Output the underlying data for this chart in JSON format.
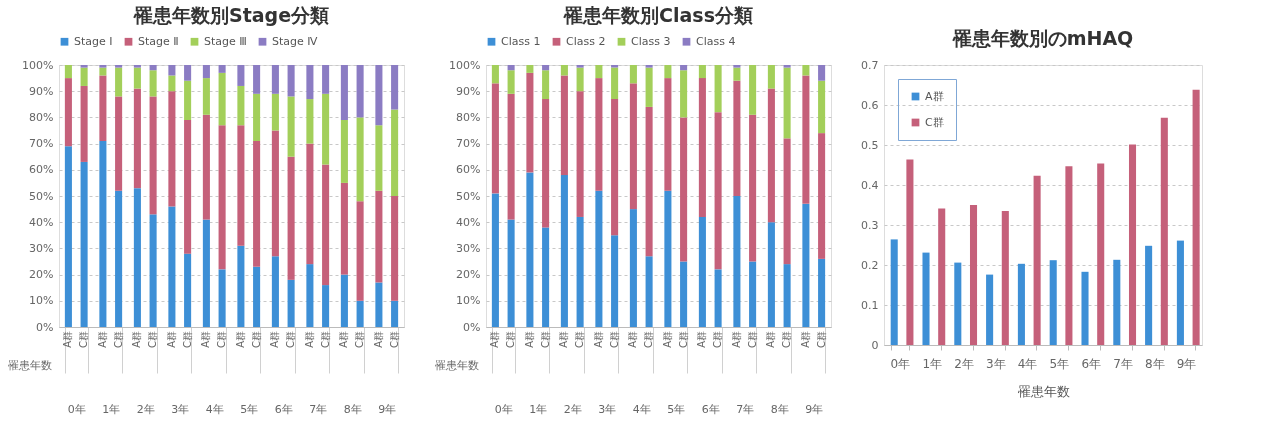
{
  "chart_data": [
    {
      "type": "bar",
      "stacked": true,
      "title": "罹患年数別Stage分類",
      "xlabel": "罹患年数",
      "legend": "top",
      "grid": "y",
      "categories": [
        "A群",
        "C群",
        "A群",
        "C群",
        "A群",
        "C群",
        "A群",
        "C群",
        "A群",
        "C群",
        "A群",
        "C群",
        "A群",
        "C群",
        "A群",
        "C群",
        "A群",
        "C群",
        "A群",
        "C群"
      ],
      "annotations": [
        "0年",
        "1年",
        "2年",
        "3年",
        "4年",
        "5年",
        "6年",
        "7年",
        "8年",
        "9年"
      ],
      "ylim": [
        0,
        100
      ],
      "yticks": [
        {
          "value": 0,
          "label": "0%"
        },
        {
          "value": 10,
          "label": "10%"
        },
        {
          "value": 20,
          "label": "20%"
        },
        {
          "value": 30,
          "label": "30%"
        },
        {
          "value": 40,
          "label": "40%"
        },
        {
          "value": 50,
          "label": "50%"
        },
        {
          "value": 60,
          "label": "60%"
        },
        {
          "value": 70,
          "label": "70%"
        },
        {
          "value": 80,
          "label": "80%"
        },
        {
          "value": 90,
          "label": "90%"
        },
        {
          "value": 100,
          "label": "100%"
        }
      ],
      "series": [
        {
          "name": "Stage Ⅰ",
          "color": "#3d8fd6",
          "values": [
            69,
            63,
            71,
            52,
            53,
            43,
            46,
            28,
            41,
            22,
            31,
            23,
            27,
            18,
            24,
            16,
            20,
            10,
            17,
            10
          ]
        },
        {
          "name": "Stage Ⅱ",
          "color": "#c5607a",
          "values": [
            26,
            29,
            25,
            36,
            38,
            45,
            44,
            51,
            40,
            55,
            46,
            48,
            48,
            47,
            46,
            46,
            35,
            38,
            35,
            40
          ]
        },
        {
          "name": "Stage Ⅲ",
          "color": "#a3cf5a",
          "values": [
            5,
            7,
            3,
            11,
            8,
            10,
            6,
            15,
            14,
            20,
            15,
            18,
            14,
            23,
            17,
            27,
            24,
            32,
            25,
            33
          ]
        },
        {
          "name": "Stage Ⅳ",
          "color": "#8b7cc3",
          "values": [
            0,
            1,
            1,
            1,
            1,
            2,
            4,
            6,
            5,
            3,
            8,
            11,
            11,
            12,
            13,
            11,
            21,
            20,
            23,
            17
          ]
        }
      ]
    },
    {
      "type": "bar",
      "stacked": true,
      "title": "罹患年数別Class分類",
      "xlabel": "罹患年数",
      "legend": "top",
      "grid": "y",
      "categories": [
        "A群",
        "C群",
        "A群",
        "C群",
        "A群",
        "C群",
        "A群",
        "C群",
        "A群",
        "C群",
        "A群",
        "C群",
        "A群",
        "C群",
        "A群",
        "C群",
        "A群",
        "C群",
        "A群",
        "C群"
      ],
      "annotations": [
        "0年",
        "1年",
        "2年",
        "3年",
        "4年",
        "5年",
        "6年",
        "7年",
        "8年",
        "9年"
      ],
      "ylim": [
        0,
        100
      ],
      "yticks": [
        {
          "value": 0,
          "label": "0%"
        },
        {
          "value": 10,
          "label": "10%"
        },
        {
          "value": 20,
          "label": "20%"
        },
        {
          "value": 30,
          "label": "30%"
        },
        {
          "value": 40,
          "label": "40%"
        },
        {
          "value": 50,
          "label": "50%"
        },
        {
          "value": 60,
          "label": "60%"
        },
        {
          "value": 70,
          "label": "70%"
        },
        {
          "value": 80,
          "label": "80%"
        },
        {
          "value": 90,
          "label": "90%"
        },
        {
          "value": 100,
          "label": "100%"
        }
      ],
      "series": [
        {
          "name": "Class 1",
          "color": "#3d8fd6",
          "values": [
            51,
            41,
            59,
            38,
            58,
            42,
            52,
            35,
            45,
            27,
            52,
            25,
            42,
            22,
            50,
            25,
            40,
            24,
            47,
            26
          ]
        },
        {
          "name": "Class 2",
          "color": "#c5607a",
          "values": [
            42,
            48,
            38,
            49,
            38,
            48,
            43,
            52,
            48,
            57,
            43,
            55,
            53,
            60,
            44,
            56,
            51,
            48,
            49,
            48
          ]
        },
        {
          "name": "Class 3",
          "color": "#a3cf5a",
          "values": [
            7,
            9,
            3,
            11,
            4,
            9,
            5,
            12,
            7,
            15,
            5,
            18,
            5,
            18,
            5,
            19,
            9,
            27,
            4,
            20
          ]
        },
        {
          "name": "Class 4",
          "color": "#8b7cc3",
          "values": [
            0,
            2,
            0,
            2,
            0,
            1,
            0,
            1,
            0,
            1,
            0,
            2,
            0,
            0,
            1,
            0,
            0,
            1,
            0,
            6
          ]
        }
      ]
    },
    {
      "type": "bar",
      "title": "罹患年数別のmHAQ",
      "xlabel": "罹患年数",
      "legend": "top left",
      "grid": "y",
      "categories": [
        "0年",
        "1年",
        "2年",
        "3年",
        "4年",
        "5年",
        "6年",
        "7年",
        "8年",
        "9年"
      ],
      "ylim": [
        0,
        0.7
      ],
      "yticks": [
        0,
        0.1,
        0.2,
        0.3,
        0.4,
        0.5,
        0.6,
        0.7
      ],
      "series": [
        {
          "name": "A群",
          "color": "#3d8fd6",
          "values": [
            0.264,
            0.231,
            0.206,
            0.176,
            0.203,
            0.212,
            0.183,
            0.213,
            0.248,
            0.261
          ]
        },
        {
          "name": "C群",
          "color": "#c5607a",
          "values": [
            0.464,
            0.341,
            0.35,
            0.335,
            0.423,
            0.447,
            0.454,
            0.501,
            0.568,
            0.638
          ]
        }
      ]
    }
  ]
}
